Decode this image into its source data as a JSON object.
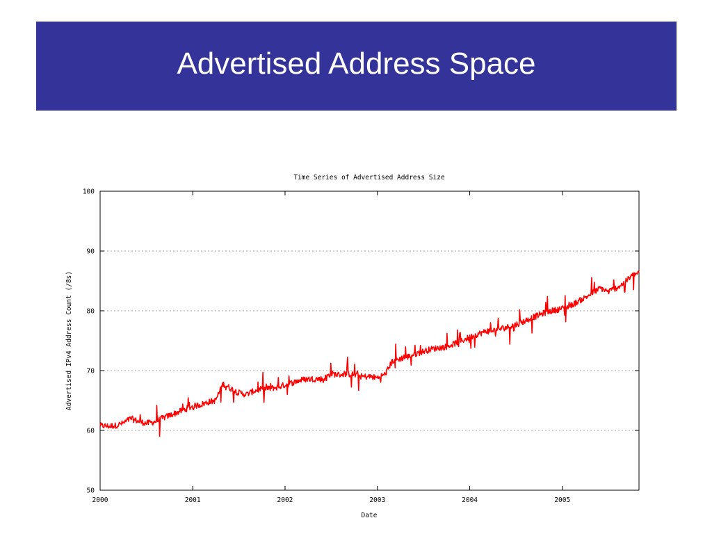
{
  "slide": {
    "title": "Advertised Address Space",
    "title_bar_color": "#333399"
  },
  "chart_data": {
    "type": "line",
    "title": "Time Series of Advertised Address Size",
    "xlabel": "Date",
    "ylabel": "Advertised IPv4 Address Count (/8s)",
    "ylim": [
      50,
      100
    ],
    "xlim": [
      "2000-01-01",
      "2005-10-31"
    ],
    "yticks": [
      50,
      60,
      70,
      80,
      90,
      100
    ],
    "xticks": [
      "2000",
      "2001",
      "2002",
      "2003",
      "2004",
      "2005"
    ],
    "grid": "horizontal dotted",
    "series_color": "#ff0000",
    "series": [
      {
        "x": [
          "2000-01-01",
          "2000-02-01",
          "2000-03-01",
          "2000-04-01",
          "2000-05-01",
          "2000-06-01",
          "2000-07-01",
          "2000-08-01",
          "2000-09-01",
          "2000-10-01",
          "2000-11-01",
          "2000-12-01",
          "2001-01-01",
          "2001-02-01",
          "2001-03-01",
          "2001-04-01",
          "2001-05-01",
          "2001-06-01",
          "2001-07-01",
          "2001-08-01",
          "2001-09-01",
          "2001-10-01",
          "2001-11-01",
          "2001-12-01",
          "2002-01-01",
          "2002-02-01",
          "2002-03-01",
          "2002-04-01",
          "2002-05-01",
          "2002-06-01",
          "2002-07-01",
          "2002-08-01",
          "2002-09-01",
          "2002-10-01",
          "2002-11-01",
          "2002-12-01",
          "2003-01-01",
          "2003-02-01",
          "2003-03-01",
          "2003-04-01",
          "2003-05-01",
          "2003-06-01",
          "2003-07-01",
          "2003-08-01",
          "2003-09-01",
          "2003-10-01",
          "2003-11-01",
          "2003-12-01",
          "2004-01-01",
          "2004-02-01",
          "2004-03-01",
          "2004-04-01",
          "2004-05-01",
          "2004-06-01",
          "2004-07-01",
          "2004-08-01",
          "2004-09-01",
          "2004-10-01",
          "2004-11-01",
          "2004-12-01",
          "2005-01-01",
          "2005-02-01",
          "2005-03-01",
          "2005-04-01",
          "2005-05-01",
          "2005-06-01",
          "2005-07-01",
          "2005-08-01",
          "2005-09-01",
          "2005-10-01",
          "2005-10-31"
        ],
        "y": [
          60.8,
          60.7,
          60.8,
          61.2,
          62.0,
          61.5,
          61.2,
          61.4,
          62.0,
          62.5,
          63.0,
          63.5,
          64.0,
          64.3,
          64.7,
          65.0,
          67.8,
          67.0,
          66.3,
          66.0,
          66.6,
          66.9,
          67.0,
          67.2,
          67.6,
          68.0,
          68.4,
          68.6,
          68.6,
          68.6,
          69.5,
          69.3,
          69.5,
          69.3,
          69.0,
          69.0,
          68.8,
          69.4,
          71.6,
          72.0,
          72.3,
          72.8,
          73.2,
          73.6,
          73.8,
          74.0,
          74.5,
          75.0,
          75.6,
          76.1,
          76.5,
          76.7,
          77.0,
          77.3,
          77.7,
          78.2,
          78.8,
          79.3,
          79.8,
          80.1,
          80.4,
          80.8,
          81.5,
          82.2,
          83.0,
          83.8,
          83.2,
          83.8,
          84.6,
          85.8,
          86.4
        ]
      }
    ]
  }
}
